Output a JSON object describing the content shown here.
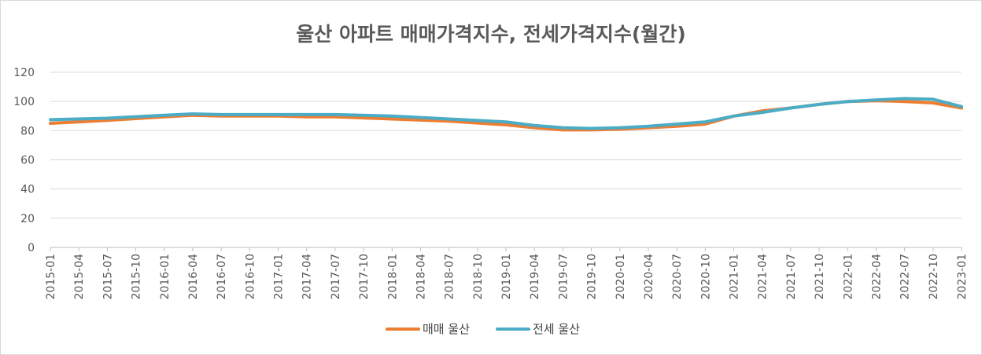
{
  "chart_data": {
    "type": "line",
    "title": "울산 아파트 매매가격지수, 전세가격지수(월간)",
    "xlabel": "",
    "ylabel": "",
    "ylim": [
      0,
      120
    ],
    "yticks": [
      0,
      20,
      40,
      60,
      80,
      100,
      120
    ],
    "grid": "horizontal",
    "legend": "bottom",
    "x_tick_labels": [
      "2015-01",
      "2015-04",
      "2015-07",
      "2015-10",
      "2016-01",
      "2016-04",
      "2016-07",
      "2016-10",
      "2017-01",
      "2017-04",
      "2017-07",
      "2017-10",
      "2018-01",
      "2018-04",
      "2018-07",
      "2018-10",
      "2019-01",
      "2019-04",
      "2019-07",
      "2019-10",
      "2020-01",
      "2020-04",
      "2020-07",
      "2020-10",
      "2021-01",
      "2021-04",
      "2021-07",
      "2021-10",
      "2022-01",
      "2022-04",
      "2022-07",
      "2022-10",
      "2023-01"
    ],
    "series": [
      {
        "name": "매매 울산",
        "color": "#ED7D31",
        "x": [
          "2015-01",
          "2015-07",
          "2016-01",
          "2016-04",
          "2016-07",
          "2017-01",
          "2017-04",
          "2017-07",
          "2018-01",
          "2018-07",
          "2019-01",
          "2019-04",
          "2019-07",
          "2019-10",
          "2020-01",
          "2020-04",
          "2020-07",
          "2020-10",
          "2021-01",
          "2021-04",
          "2021-07",
          "2021-10",
          "2022-01",
          "2022-04",
          "2022-07",
          "2022-10",
          "2023-01"
        ],
        "values": [
          85,
          87,
          89.5,
          90.5,
          90,
          90,
          89.5,
          89.5,
          88,
          86.5,
          84,
          82,
          80.5,
          80.5,
          81,
          82,
          83,
          84.5,
          90,
          93.5,
          95.5,
          98,
          100,
          100.5,
          100,
          99,
          95.5
        ]
      },
      {
        "name": "전세 울산",
        "color": "#4BACC6",
        "x": [
          "2015-01",
          "2015-07",
          "2016-01",
          "2016-04",
          "2016-07",
          "2017-01",
          "2017-04",
          "2017-07",
          "2018-01",
          "2018-07",
          "2019-01",
          "2019-04",
          "2019-07",
          "2019-10",
          "2020-01",
          "2020-04",
          "2020-07",
          "2020-10",
          "2021-01",
          "2021-04",
          "2021-07",
          "2021-10",
          "2022-01",
          "2022-04",
          "2022-07",
          "2022-10",
          "2023-01"
        ],
        "values": [
          87.5,
          88.5,
          90.5,
          91.5,
          91,
          91,
          91,
          91,
          90,
          88,
          86,
          83.5,
          82,
          81.5,
          82,
          83,
          84.5,
          86,
          90,
          92.5,
          95.5,
          98,
          100,
          101,
          102,
          101.5,
          96.5
        ]
      }
    ]
  }
}
